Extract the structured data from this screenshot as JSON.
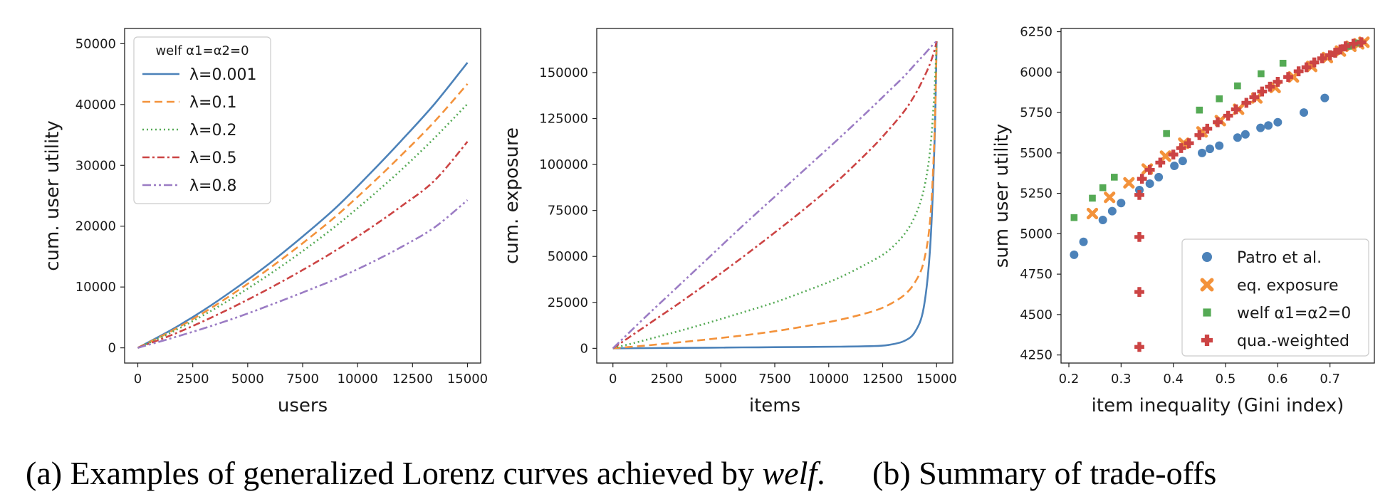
{
  "chart_data": [
    {
      "type": "line",
      "xlabel": "users",
      "ylabel": "cum. user utility",
      "xlim": [
        -600,
        15600
      ],
      "ylim": [
        -2500,
        52500
      ],
      "xticks": [
        0,
        2500,
        5000,
        7500,
        10000,
        12500,
        15000
      ],
      "yticks": [
        0,
        10000,
        20000,
        30000,
        40000,
        50000
      ],
      "legend": {
        "title": "welf α1=α2=0",
        "placement": "upper-left"
      },
      "x": [
        0,
        1500,
        3000,
        4500,
        6000,
        7500,
        9000,
        10500,
        12000,
        13500,
        15000
      ],
      "series": [
        {
          "name": "λ=0.001",
          "color": "#4c82b9",
          "dash": "solid",
          "values": [
            0,
            2900,
            6200,
            9900,
            13900,
            18300,
            23000,
            28400,
            34100,
            40100,
            46900
          ]
        },
        {
          "name": "λ=0.1",
          "color": "#f3923b",
          "dash": "dashed",
          "values": [
            0,
            2700,
            5800,
            9300,
            13100,
            17200,
            21600,
            26500,
            31700,
            37200,
            43400
          ]
        },
        {
          "name": "λ=0.2",
          "color": "#55aa55",
          "dash": "dotted",
          "values": [
            0,
            2500,
            5400,
            8600,
            12100,
            15900,
            20000,
            24500,
            29300,
            34500,
            40100
          ]
        },
        {
          "name": "λ=0.5",
          "color": "#cc4444",
          "dash": "dashdot",
          "values": [
            0,
            2050,
            4400,
            7000,
            9800,
            12800,
            16000,
            19500,
            23300,
            27500,
            33900
          ]
        },
        {
          "name": "λ=0.8",
          "color": "#9b7cc4",
          "dash": "dashdotdot",
          "values": [
            0,
            1550,
            3200,
            5000,
            7000,
            9100,
            11300,
            13800,
            16600,
            19800,
            24300
          ]
        }
      ]
    },
    {
      "type": "line",
      "xlabel": "items",
      "ylabel": "cum. exposure",
      "xlim": [
        -750,
        15750
      ],
      "ylim": [
        -8000,
        174000
      ],
      "xticks": [
        0,
        2500,
        5000,
        7500,
        10000,
        12500,
        15000
      ],
      "yticks": [
        0,
        25000,
        50000,
        75000,
        100000,
        125000,
        150000
      ],
      "x": [
        0,
        1500,
        3000,
        4500,
        6000,
        7500,
        9000,
        10500,
        12000,
        12750,
        13500,
        14000,
        14400,
        14700,
        14900,
        15000
      ],
      "series": [
        {
          "name": "λ=0.001",
          "color": "#4c82b9",
          "dash": "solid",
          "values": [
            0,
            120,
            250,
            380,
            500,
            620,
            760,
            900,
            1200,
            1800,
            4000,
            9000,
            22000,
            55000,
            110000,
            167000
          ]
        },
        {
          "name": "λ=0.1",
          "color": "#f3923b",
          "dash": "dashed",
          "values": [
            0,
            1500,
            3200,
            5000,
            7000,
            9300,
            12200,
            15500,
            20000,
            23500,
            29000,
            36000,
            47000,
            70000,
            115000,
            167000
          ]
        },
        {
          "name": "λ=0.2",
          "color": "#55aa55",
          "dash": "dotted",
          "values": [
            0,
            4500,
            9200,
            14200,
            19500,
            25000,
            31500,
            38500,
            47500,
            53000,
            62000,
            72000,
            86000,
            108000,
            140000,
            167000
          ]
        },
        {
          "name": "λ=0.5",
          "color": "#cc4444",
          "dash": "dashdot",
          "values": [
            0,
            12000,
            24000,
            36500,
            49500,
            63000,
            77000,
            92000,
            109000,
            118500,
            129000,
            138000,
            147000,
            155000,
            162000,
            167000
          ]
        },
        {
          "name": "λ=0.8",
          "color": "#9b7cc4",
          "dash": "dashdotdot",
          "values": [
            0,
            17000,
            33500,
            50000,
            66500,
            82500,
            98500,
            114500,
            131000,
            139500,
            148000,
            154500,
            159500,
            163500,
            166000,
            167000
          ]
        }
      ]
    },
    {
      "type": "scatter",
      "xlabel": "item inequality (Gini index)",
      "ylabel": "sum user utility",
      "xlim": [
        0.185,
        0.785
      ],
      "ylim": [
        4200,
        6270
      ],
      "xticks": [
        0.2,
        0.3,
        0.4,
        0.5,
        0.6,
        0.7
      ],
      "yticks": [
        4250,
        4500,
        4750,
        5000,
        5250,
        5500,
        5750,
        6000,
        6250
      ],
      "legend": {
        "placement": "lower-right"
      },
      "series": [
        {
          "name": "Patro et al.",
          "color": "#4c82b9",
          "marker": "circle",
          "x": [
            0.21,
            0.228,
            0.265,
            0.283,
            0.3,
            0.335,
            0.355,
            0.372,
            0.402,
            0.418,
            0.455,
            0.47,
            0.488,
            0.523,
            0.538,
            0.567,
            0.582,
            0.6,
            0.65,
            0.69
          ],
          "y": [
            4870,
            4950,
            5085,
            5140,
            5190,
            5270,
            5310,
            5350,
            5420,
            5450,
            5500,
            5525,
            5545,
            5595,
            5615,
            5655,
            5670,
            5690,
            5750,
            5840
          ]
        },
        {
          "name": "eq. exposure",
          "color": "#f3923b",
          "marker": "x",
          "x": [
            0.245,
            0.278,
            0.315,
            0.35,
            0.385,
            0.42,
            0.455,
            0.49,
            0.525,
            0.56,
            0.595,
            0.63,
            0.665,
            0.695,
            0.72,
            0.74,
            0.755,
            0.765
          ],
          "y": [
            5125,
            5225,
            5315,
            5400,
            5480,
            5560,
            5630,
            5700,
            5770,
            5840,
            5905,
            5970,
            6035,
            6090,
            6130,
            6160,
            6175,
            6185
          ]
        },
        {
          "name": "welf α1=α2=0",
          "color": "#55aa55",
          "marker": "square",
          "x": [
            0.21,
            0.245,
            0.265,
            0.287,
            0.387,
            0.45,
            0.488,
            0.523,
            0.568,
            0.61,
            0.735,
            0.75
          ],
          "y": [
            5100,
            5220,
            5285,
            5350,
            5620,
            5765,
            5835,
            5915,
            5990,
            6055,
            6160,
            6180
          ]
        },
        {
          "name": "qua.-weighted",
          "color": "#cc4444",
          "marker": "plus",
          "x": [
            0.335,
            0.335,
            0.335,
            0.335,
            0.34,
            0.355,
            0.375,
            0.4,
            0.415,
            0.43,
            0.45,
            0.465,
            0.485,
            0.505,
            0.52,
            0.54,
            0.555,
            0.57,
            0.585,
            0.6,
            0.62,
            0.64,
            0.655,
            0.67,
            0.685,
            0.7,
            0.71,
            0.72,
            0.73,
            0.745,
            0.76
          ],
          "y": [
            4300,
            4640,
            4980,
            5240,
            5340,
            5395,
            5440,
            5490,
            5530,
            5560,
            5610,
            5650,
            5690,
            5730,
            5770,
            5810,
            5845,
            5880,
            5910,
            5940,
            5970,
            6005,
            6030,
            6060,
            6085,
            6105,
            6120,
            6140,
            6160,
            6175,
            6185
          ]
        }
      ]
    }
  ],
  "captions": {
    "a_prefix": "(a) Examples of generalized Lorenz curves achieved by ",
    "a_em": "welf",
    "a_suffix": ".",
    "b": "(b) Summary of trade-offs"
  }
}
